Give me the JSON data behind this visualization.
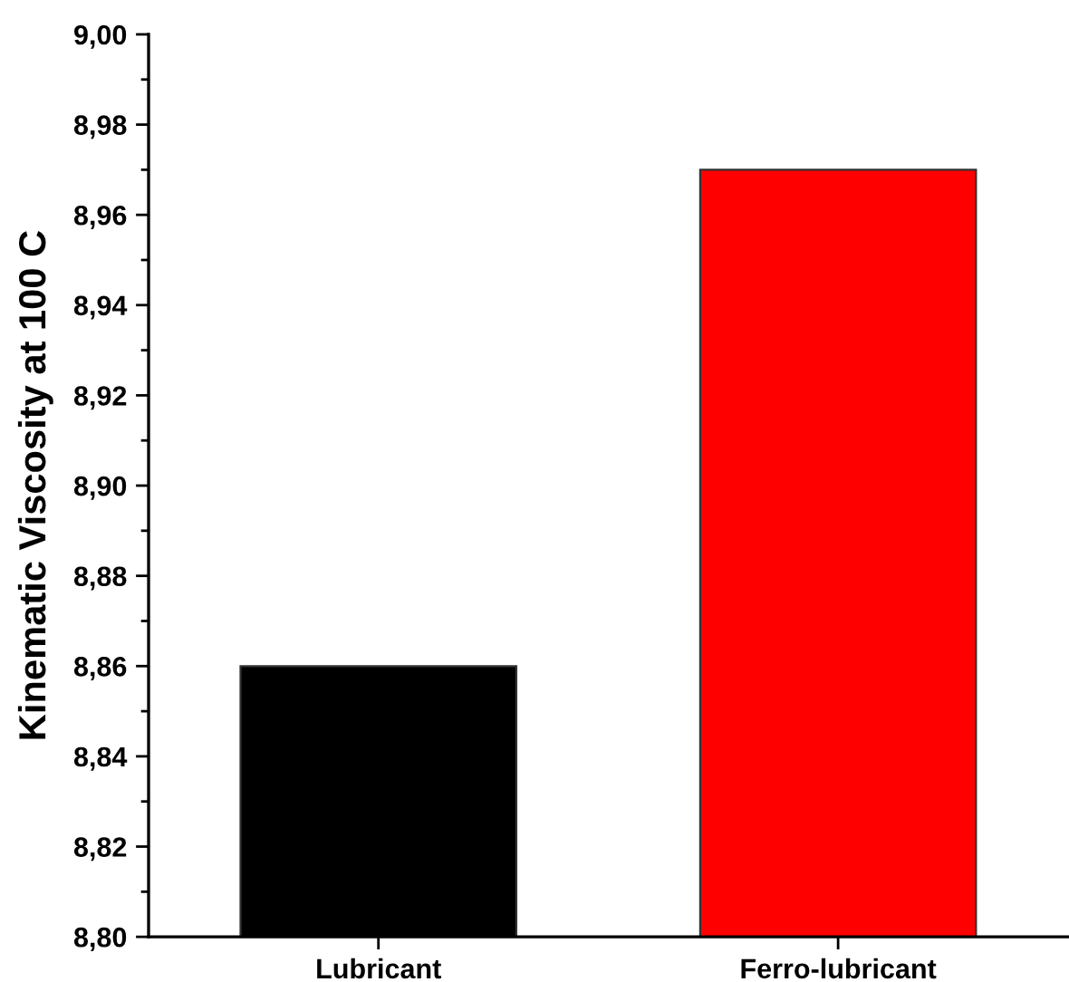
{
  "chart_data": {
    "type": "bar",
    "ylabel": "Kinematic Viscosity at 100 C",
    "categories": [
      "Lubricant",
      "Ferro-lubricant"
    ],
    "values": [
      8.86,
      8.97
    ],
    "colors": [
      "#000000",
      "#ff0000"
    ],
    "ylim": [
      8.8,
      9.0
    ],
    "yticks": [
      {
        "value": 8.8,
        "label": "8,80"
      },
      {
        "value": 8.82,
        "label": "8,82"
      },
      {
        "value": 8.84,
        "label": "8,84"
      },
      {
        "value": 8.86,
        "label": "8,86"
      },
      {
        "value": 8.88,
        "label": "8,88"
      },
      {
        "value": 8.9,
        "label": "8,90"
      },
      {
        "value": 8.92,
        "label": "8,92"
      },
      {
        "value": 8.94,
        "label": "8,94"
      },
      {
        "value": 8.96,
        "label": "8,96"
      },
      {
        "value": 8.98,
        "label": "8,98"
      },
      {
        "value": 9.0,
        "label": "9,00"
      }
    ],
    "grid": false,
    "legend": false
  }
}
